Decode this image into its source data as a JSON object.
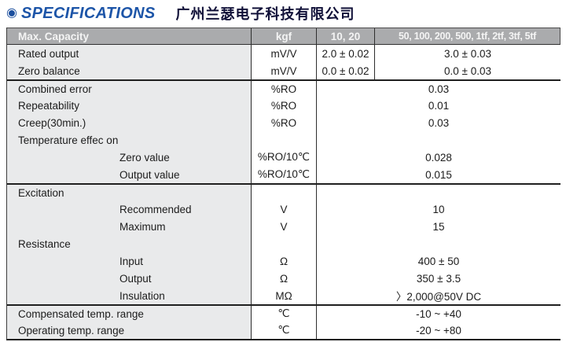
{
  "header": {
    "bullet_icon": "◉",
    "title": "SPECIFICATIONS",
    "company": "广州兰瑟电子科技有限公司"
  },
  "colors": {
    "accent_blue": "#1d55a8",
    "table_header_bg": "#aaabad",
    "label_column_bg": "#e9eaeb",
    "border_dark": "#1f1f1f"
  },
  "table": {
    "header": {
      "label": "Max. Capacity",
      "unit": "kgf",
      "col_low": "10, 20",
      "col_high": "50, 100, 200, 500, 1tf, 2tf, 3tf, 5tf"
    },
    "rows": [
      {
        "label": "Rated output",
        "indent": false,
        "unit": "mV/V",
        "split": true,
        "value_low": "2.0 ± 0.02",
        "value_high": "3.0 ± 0.03",
        "sep_above": false
      },
      {
        "label": "Zero balance",
        "indent": false,
        "unit": "mV/V",
        "split": true,
        "value_low": "0.0 ± 0.02",
        "value_high": "0.0 ± 0.03",
        "sep_above": false
      },
      {
        "label": "Combined error",
        "indent": false,
        "unit": "%RO",
        "split": false,
        "value": "0.03",
        "sep_above": true
      },
      {
        "label": "Repeatability",
        "indent": false,
        "unit": "%RO",
        "split": false,
        "value": "0.01",
        "sep_above": false
      },
      {
        "label": "Creep(30min.)",
        "indent": false,
        "unit": "%RO",
        "split": false,
        "value": "0.03",
        "sep_above": false
      },
      {
        "label": "Temperature effec on",
        "indent": false,
        "unit": "",
        "split": false,
        "value": "",
        "sep_above": false
      },
      {
        "label": "Zero value",
        "indent": true,
        "unit": "%RO/10℃",
        "split": false,
        "value": "0.028",
        "sep_above": false
      },
      {
        "label": "Output value",
        "indent": true,
        "unit": "%RO/10℃",
        "split": false,
        "value": "0.015",
        "sep_above": false
      },
      {
        "label": "Excitation",
        "indent": false,
        "unit": "",
        "split": false,
        "value": "",
        "sep_above": true
      },
      {
        "label": "Recommended",
        "indent": true,
        "unit": "V",
        "split": false,
        "value": "10",
        "sep_above": false
      },
      {
        "label": "Maximum",
        "indent": true,
        "unit": "V",
        "split": false,
        "value": "15",
        "sep_above": false
      },
      {
        "label": "Resistance",
        "indent": false,
        "unit": "",
        "split": false,
        "value": "",
        "sep_above": false
      },
      {
        "label": "Input",
        "indent": true,
        "unit": "Ω",
        "split": false,
        "value": "400 ± 50",
        "sep_above": false
      },
      {
        "label": "Output",
        "indent": true,
        "unit": "Ω",
        "split": false,
        "value": "350 ± 3.5",
        "sep_above": false
      },
      {
        "label": "Insulation",
        "indent": true,
        "unit": "MΩ",
        "split": false,
        "value": "〉2,000@50V DC",
        "sep_above": false
      },
      {
        "label": "Compensated temp. range",
        "indent": false,
        "unit": "℃",
        "split": false,
        "value": "-10 ~ +40",
        "sep_above": true
      },
      {
        "label": "Operating temp. range",
        "indent": false,
        "unit": "℃",
        "split": false,
        "value": "-20 ~ +80",
        "sep_above": false
      }
    ]
  }
}
